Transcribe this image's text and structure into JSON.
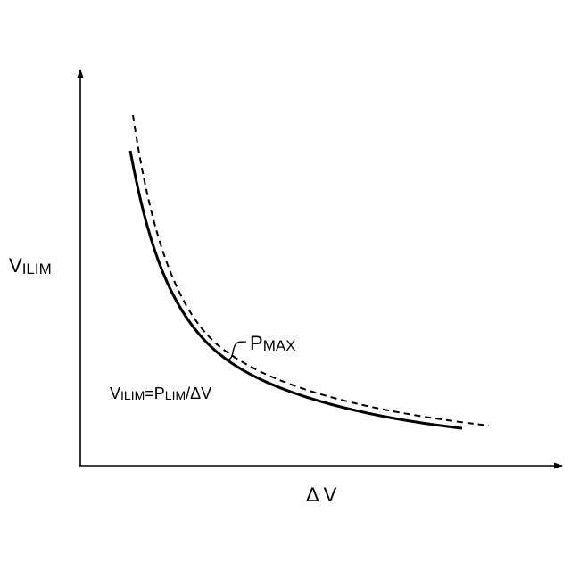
{
  "axes": {
    "y_label_main": "V",
    "y_label_sub": "ILIM",
    "x_label": "Δ V"
  },
  "curves": {
    "pmax_label_main": "P",
    "pmax_label_sub": "MAX"
  },
  "equation": {
    "v_main": "V",
    "v_sub": "ILIM",
    "equals": "=P",
    "p_sub": "LIM",
    "tail": "/ΔV"
  },
  "colors": {
    "ink": "#000000",
    "background": "#ffffff"
  }
}
